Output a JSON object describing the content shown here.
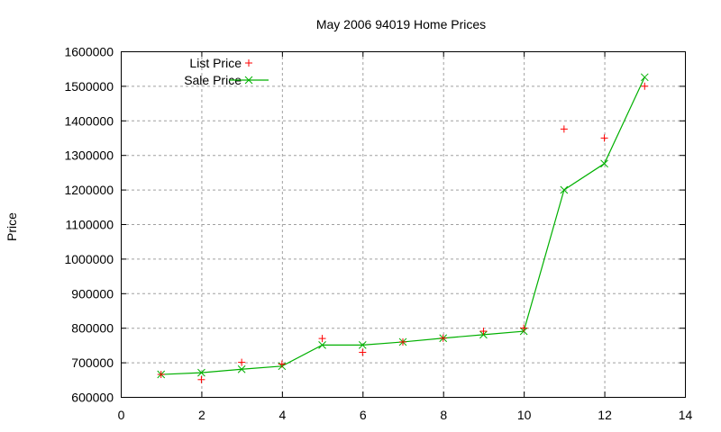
{
  "chart_data": {
    "type": "line",
    "title": "May 2006 94019 Home Prices",
    "xlabel": "",
    "ylabel": "Price",
    "xlim": [
      0,
      14
    ],
    "ylim": [
      600000,
      1600000
    ],
    "x_ticks": [
      0,
      2,
      4,
      6,
      8,
      10,
      12,
      14
    ],
    "y_ticks": [
      600000,
      700000,
      800000,
      900000,
      1000000,
      1100000,
      1200000,
      1300000,
      1400000,
      1500000,
      1600000
    ],
    "grid": true,
    "legend_position": "top-left",
    "x": [
      1,
      2,
      3,
      4,
      5,
      6,
      7,
      8,
      9,
      10,
      11,
      12,
      13
    ],
    "series": [
      {
        "name": "List Price",
        "style": "points",
        "marker": "+",
        "color": "#ff0000",
        "values": [
          665000,
          650000,
          700000,
          695000,
          769000,
          729000,
          759000,
          770000,
          790000,
          799000,
          1375000,
          1349000,
          1499000
        ]
      },
      {
        "name": "Sale Price",
        "style": "linespoints",
        "marker": "x",
        "color": "#00b000",
        "values": [
          665000,
          670000,
          680000,
          689000,
          750000,
          750000,
          759000,
          770000,
          780000,
          790000,
          1199000,
          1275000,
          1525000
        ]
      }
    ]
  }
}
